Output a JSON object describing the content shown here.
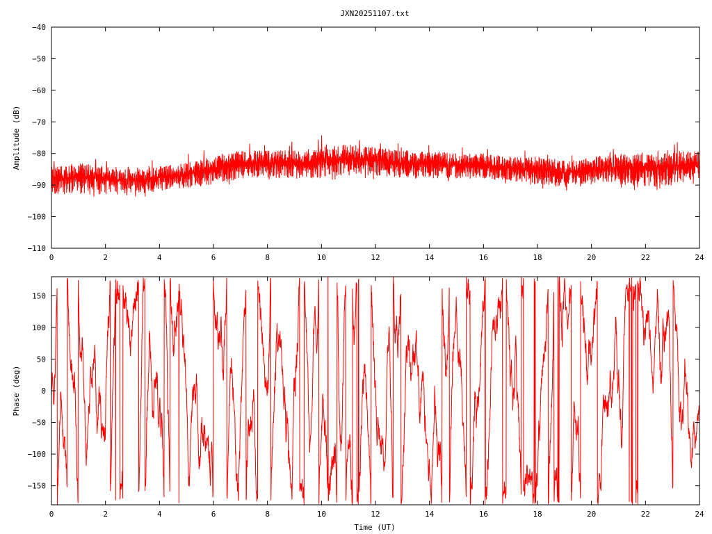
{
  "title": "JXN20251107.txt",
  "colors": {
    "trace": "#ff0000",
    "axis": "#000000",
    "background": "#ffffff"
  },
  "chart_data": [
    {
      "type": "line",
      "title": "JXN20251107.txt",
      "xlabel": "",
      "ylabel": "Amplitude (dB)",
      "xlim": [
        0,
        24
      ],
      "ylim": [
        -110,
        -40
      ],
      "x_ticks": [
        0,
        2,
        4,
        6,
        8,
        10,
        12,
        14,
        16,
        18,
        20,
        22,
        24
      ],
      "x_tick_labels": [
        "0",
        "2",
        "4",
        "6",
        "8",
        "10",
        "12",
        "14",
        "16",
        "18",
        "20",
        "22",
        "24"
      ],
      "y_ticks": [
        -110,
        -100,
        -90,
        -80,
        -70,
        -60,
        -50,
        -40
      ],
      "y_tick_labels": [
        "−110",
        "−100",
        "−90",
        "−80",
        "−70",
        "−60",
        "−50",
        "−40"
      ],
      "grid": false,
      "series": [
        {
          "color": "#ff0000",
          "envelope": {
            "x": [
              0,
              1,
              2,
              3,
              4,
              5,
              6,
              7,
              8,
              9,
              10,
              11,
              12,
              13,
              14,
              15,
              16,
              17,
              18,
              19,
              20,
              21,
              22,
              23,
              24
            ],
            "lower": [
              -93,
              -93,
              -93,
              -93,
              -92,
              -91,
              -90,
              -88,
              -88,
              -88,
              -88,
              -87,
              -87,
              -88,
              -88,
              -88,
              -88,
              -89,
              -90,
              -91,
              -90,
              -90,
              -91,
              -90,
              -88
            ],
            "upper": [
              -84,
              -83,
              -84,
              -85,
              -84,
              -83,
              -81,
              -79,
              -79,
              -79,
              -78,
              -77,
              -78,
              -79,
              -79,
              -80,
              -80,
              -81,
              -81,
              -82,
              -81,
              -80,
              -79,
              -79,
              -79
            ],
            "peaks": [
              -80,
              -79,
              -80,
              -82,
              -81,
              -80,
              -78,
              -76,
              -76,
              -76,
              -73,
              -75,
              -76,
              -76,
              -76,
              -77,
              -77,
              -78,
              -78,
              -79,
              -78,
              -77,
              -76,
              -76,
              -77
            ]
          }
        }
      ]
    },
    {
      "type": "line",
      "title": "",
      "xlabel": "Time (UT)",
      "ylabel": "Phase (deg)",
      "xlim": [
        0,
        24
      ],
      "ylim": [
        -180,
        180
      ],
      "x_ticks": [
        0,
        2,
        4,
        6,
        8,
        10,
        12,
        14,
        16,
        18,
        20,
        22,
        24
      ],
      "x_tick_labels": [
        "0",
        "2",
        "4",
        "6",
        "8",
        "10",
        "12",
        "14",
        "16",
        "18",
        "20",
        "22",
        "24"
      ],
      "y_ticks": [
        -150,
        -100,
        -50,
        0,
        50,
        100,
        150
      ],
      "y_tick_labels": [
        "−150",
        "−100",
        "−50",
        "0",
        "50",
        "100",
        "150"
      ],
      "grid": false,
      "series": [
        {
          "color": "#ff0000",
          "wrapped": true,
          "range": [
            -180,
            180
          ]
        }
      ]
    }
  ]
}
